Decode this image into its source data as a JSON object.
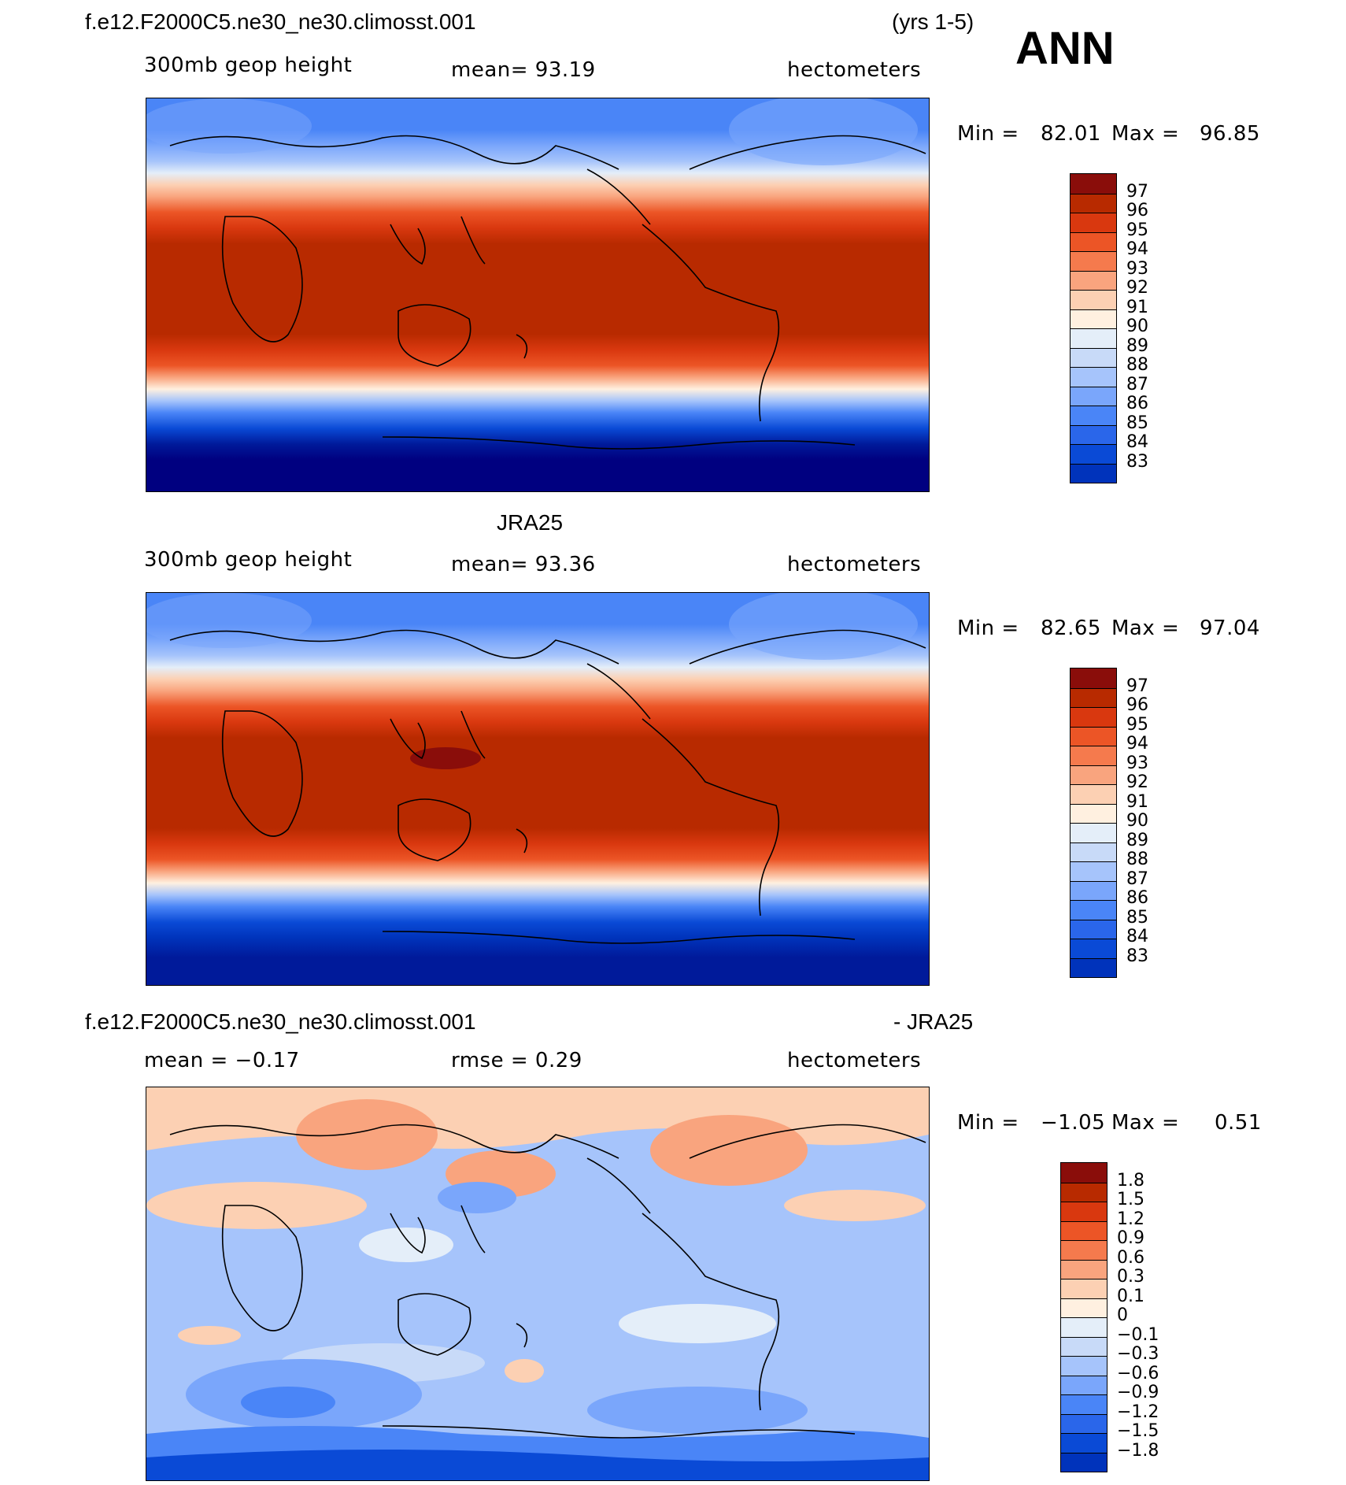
{
  "header": {
    "case_name": "f.e12.F2000C5.ne30_ne30.climosst.001",
    "years": "(yrs 1-5)",
    "season": "ANN"
  },
  "panels": [
    {
      "id": "model",
      "variable": "300mb geop height",
      "mean_text": "mean=   93.19",
      "units": "hectometers",
      "min_label": "Min =",
      "min_value": "82.01",
      "max_label": "Max =",
      "max_value": "96.85"
    },
    {
      "id": "obs",
      "title": "JRA25",
      "variable": "300mb geop height",
      "mean_text": "mean=   93.36",
      "units": "hectometers",
      "min_label": "Min =",
      "min_value": "82.65",
      "max_label": "Max =",
      "max_value": "97.04"
    },
    {
      "id": "diff",
      "title_left": "f.e12.F2000C5.ne30_ne30.climosst.001",
      "title_right": "- JRA25",
      "mean_text": "mean =   −0.17",
      "rmse_text": "rmse =    0.29",
      "units": "hectometers",
      "min_label": "Min =",
      "min_value": "−1.05",
      "max_label": "Max =",
      "max_value": "0.51"
    }
  ],
  "colors": {
    "abs_scale": [
      "#000080",
      "#001a9a",
      "#0033bb",
      "#0a4ad6",
      "#2a66ea",
      "#4a85f7",
      "#7aa6fb",
      "#a6c4fb",
      "#c8daf8",
      "#e4eef9",
      "#fff0e0",
      "#fcd0b3",
      "#f9a47e",
      "#f57a4d",
      "#ec5526",
      "#d9380f",
      "#b82a00",
      "#8a0d0a"
    ],
    "diff_scale": [
      "#000080",
      "#001a9a",
      "#0033bb",
      "#0a4ad6",
      "#2a66ea",
      "#4a85f7",
      "#7aa6fb",
      "#a6c4fb",
      "#c8daf8",
      "#e4eef9",
      "#fff0e0",
      "#fcd0b3",
      "#f9a47e",
      "#f57a4d",
      "#ec5526",
      "#d9380f",
      "#b82a00",
      "#8a0d0a"
    ]
  },
  "chart_data": [
    {
      "type": "heatmap",
      "title": "f.e12.F2000C5.ne30_ne30.climosst.001",
      "subtitle": "300mb geop height",
      "units": "hectometers",
      "mean": 93.19,
      "min": 82.01,
      "max": 96.85,
      "colorbar_levels": [
        83,
        84,
        85,
        86,
        87,
        88,
        89,
        90,
        91,
        92,
        93,
        94,
        95,
        96,
        97
      ],
      "zonal_profile": {
        "lat": [
          90,
          80,
          70,
          60,
          50,
          40,
          30,
          20,
          10,
          0,
          -10,
          -20,
          -30,
          -40,
          -50,
          -60,
          -70,
          -80,
          -90
        ],
        "value": [
          86.0,
          86.5,
          87.5,
          88.5,
          90.5,
          93.0,
          95.5,
          96.3,
          96.5,
          96.5,
          96.5,
          96.2,
          95.0,
          92.0,
          88.0,
          85.0,
          83.5,
          82.5,
          82.0
        ]
      }
    },
    {
      "type": "heatmap",
      "title": "JRA25",
      "subtitle": "300mb geop height",
      "units": "hectometers",
      "mean": 93.36,
      "min": 82.65,
      "max": 97.04,
      "colorbar_levels": [
        83,
        84,
        85,
        86,
        87,
        88,
        89,
        90,
        91,
        92,
        93,
        94,
        95,
        96,
        97
      ],
      "zonal_profile": {
        "lat": [
          90,
          80,
          70,
          60,
          50,
          40,
          30,
          20,
          10,
          0,
          -10,
          -20,
          -30,
          -40,
          -50,
          -60,
          -70,
          -80,
          -90
        ],
        "value": [
          86.0,
          86.5,
          87.5,
          88.5,
          90.5,
          93.0,
          95.5,
          96.4,
          96.6,
          96.6,
          96.6,
          96.3,
          95.1,
          92.2,
          88.3,
          85.3,
          84.0,
          83.2,
          82.7
        ]
      }
    },
    {
      "type": "heatmap",
      "title": "f.e12.F2000C5.ne30_ne30.climosst.001 - JRA25",
      "units": "hectometers",
      "mean": -0.17,
      "rmse": 0.29,
      "min": -1.05,
      "max": 0.51,
      "colorbar_levels": [
        -1.8,
        -1.5,
        -1.2,
        -0.9,
        -0.6,
        -0.3,
        -0.1,
        0,
        0.1,
        0.3,
        0.6,
        0.9,
        1.2,
        1.5,
        1.8
      ]
    }
  ]
}
